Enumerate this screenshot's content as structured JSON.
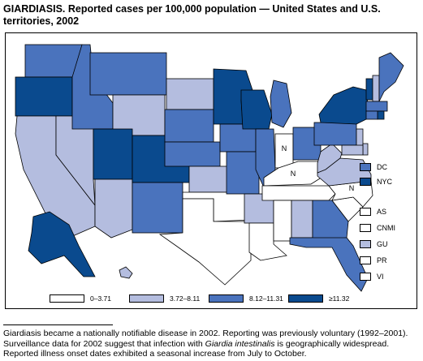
{
  "title": "GIARDIASIS. Reported cases per 100,000 population — United States and U.S. territories, 2002",
  "colors": {
    "c0": "#ffffff",
    "c1": "#b4bddf",
    "c2": "#4a73bd",
    "c3": "#0a4a8e",
    "outline": "#000000"
  },
  "legend": [
    {
      "label": "0–3.71",
      "class": "c0"
    },
    {
      "label": "3.72–8.11",
      "class": "c1"
    },
    {
      "label": "8.12–11.31",
      "class": "c2"
    },
    {
      "label": "≥11.32",
      "class": "c3"
    }
  ],
  "special_areas": [
    {
      "label": "DC",
      "class": "c2"
    },
    {
      "label": "NYC",
      "class": "c3"
    }
  ],
  "territories": [
    {
      "label": "AS",
      "class": "c0"
    },
    {
      "label": "CNMI",
      "class": "c0"
    },
    {
      "label": "GU",
      "class": "c1"
    },
    {
      "label": "PR",
      "class": "c0"
    },
    {
      "label": "VI",
      "class": "c0"
    }
  ],
  "not_notifiable_marker": "N",
  "states": {
    "WA": "c2",
    "OR": "c3",
    "CA": "c1",
    "NV": "c1",
    "ID": "c2",
    "MT": "c2",
    "WY": "c1",
    "UT": "c3",
    "AZ": "c1",
    "CO": "c3",
    "NM": "c2",
    "ND": "c1",
    "SD": "c2",
    "NE": "c2",
    "KS": "c1",
    "OK": "c0",
    "TX": "c0",
    "MN": "c3",
    "IA": "c2",
    "MO": "c2",
    "AR": "c1",
    "LA": "c0",
    "WI": "c3",
    "IL": "c2",
    "MI": "c2",
    "IN": "N",
    "OH": "c2",
    "KY": "N",
    "TN": "c0",
    "MS": "c0",
    "AL": "c1",
    "GA": "c2",
    "FL": "c2",
    "SC": "c0",
    "NC": "N",
    "VA": "c1",
    "WV": "c1",
    "PA": "c2",
    "NY": "c3",
    "VT": "c3",
    "NH": "c1",
    "ME": "c2",
    "MA": "c2",
    "RI": "c3",
    "CT": "c2",
    "NJ": "c1",
    "DE": "c1",
    "MD": "c1",
    "AK": "c3",
    "HI": "c1"
  },
  "footnote": "Giardiasis became a nationally notifiable disease in 2002. Reporting was previously voluntary (1992–2001). Surveillance data for 2002 suggest that infection with Giardia intestinalis is geographically widespread. Reported illness onset dates exhibited a seasonal increase from July to October."
}
